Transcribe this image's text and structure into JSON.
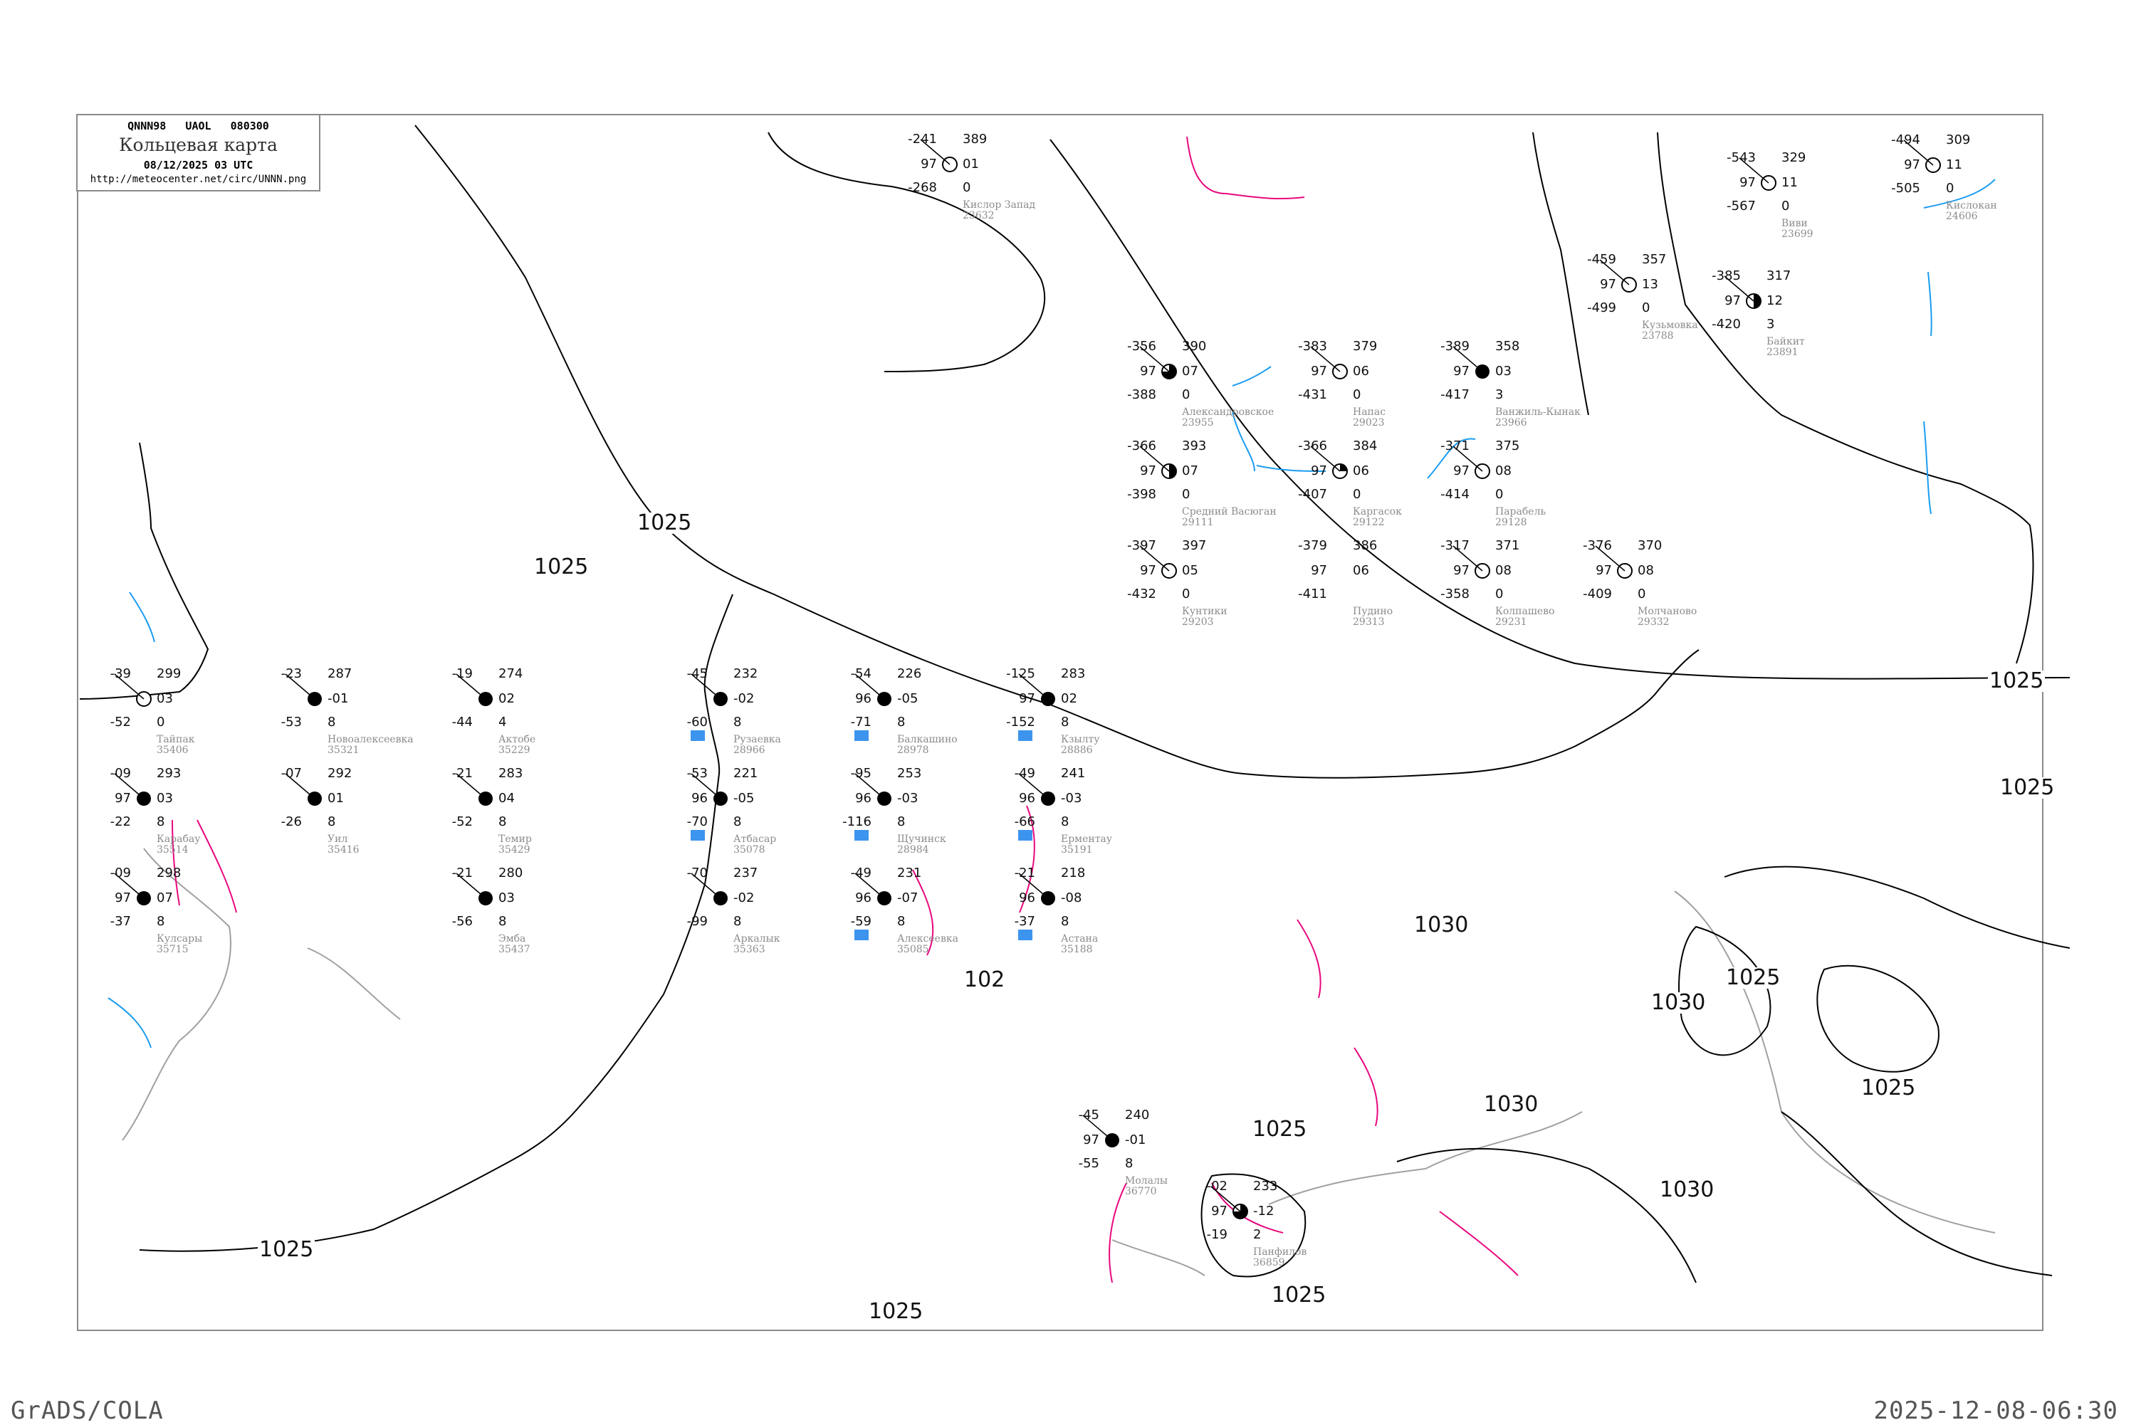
{
  "header": {
    "code_line": "QNNN98   UAOL   080300",
    "title": "Кольцевая карта",
    "datetime": "08/12/2025 03 UTC",
    "url": "http://meteocenter.net/circ/UNNN.png"
  },
  "footer": {
    "left": "GrADS/COLA",
    "right": "2025-12-08-06:30"
  },
  "colors": {
    "isobar": "#000000",
    "river": "#1a9cf0",
    "isotherm": "#e8087e",
    "coast": "#a0a0a0",
    "snow_marker": "#3d94ee",
    "yellow_marker": "#ffff33"
  },
  "isobar_labels": [
    "1025",
    "1025",
    "1025",
    "1025",
    "1025",
    "1025",
    "1030",
    "1030",
    "102",
    "1030",
    "1030",
    "1025",
    "1025",
    "1025",
    "1025"
  ],
  "stations": [
    {
      "name": "Кислор Запад",
      "id": "23632",
      "t": "-241",
      "p": "389",
      "pc": "97",
      "tend": "01",
      "td": "-268",
      "extra": "0",
      "cover": 0
    },
    {
      "name": "Кислокан",
      "id": "24606",
      "t": "-494",
      "p": "309",
      "pc": "97",
      "tend": "11",
      "td": "-505",
      "extra": "0",
      "cover": 0
    },
    {
      "name": "Александровское",
      "id": "23955",
      "t": "-356",
      "p": "390",
      "pc": "97",
      "tend": "07",
      "td": "-388",
      "extra": "0",
      "cover": 0.75
    },
    {
      "name": "Средний Васюган",
      "id": "29111",
      "t": "-366",
      "p": "393",
      "pc": "97",
      "tend": "07",
      "td": "-398",
      "extra": "0",
      "cover": 0.5
    },
    {
      "name": "Ванжиль-Кынак",
      "id": "23966",
      "t": "-389",
      "p": "358",
      "pc": "97",
      "tend": "03",
      "td": "-417",
      "extra": "3",
      "cover": 1
    },
    {
      "name": "Напас",
      "id": "29023",
      "t": "-383",
      "p": "379",
      "pc": "97",
      "tend": "06",
      "td": "-431",
      "extra": "0",
      "cover": 0
    },
    {
      "name": "Каргасок",
      "id": "29122",
      "t": "-366",
      "p": "384",
      "pc": "97",
      "tend": "06",
      "td": "-407",
      "extra": "0",
      "cover": 0.25
    },
    {
      "name": "Кунтики",
      "id": "29203",
      "t": "-397",
      "p": "397",
      "pc": "97",
      "tend": "05",
      "td": "-432",
      "extra": "0",
      "cover": 0
    },
    {
      "name": "Парабель",
      "id": "29128",
      "t": "-371",
      "p": "375",
      "pc": "97",
      "tend": "08",
      "td": "-414",
      "extra": "0",
      "cover": 0
    },
    {
      "name": "Колпашево",
      "id": "29231",
      "t": "-317",
      "p": "371",
      "pc": "97",
      "tend": "08",
      "td": "-358",
      "extra": "0",
      "cover": 0
    },
    {
      "name": "Молчаново",
      "id": "29332",
      "t": "-376",
      "p": "370",
      "pc": "97",
      "tend": "08",
      "td": "-409",
      "extra": "0",
      "cover": 0
    },
    {
      "name": "Пудино",
      "id": "29313",
      "t": "-379",
      "p": "386",
      "pc": "97",
      "tend": "06",
      "td": "-411",
      "extra": "",
      "cover": null
    },
    {
      "name": "Виви",
      "id": "23699",
      "t": "-543",
      "p": "329",
      "pc": "97",
      "tend": "11",
      "td": "-567",
      "extra": "0",
      "cover": 0
    },
    {
      "name": "Кузьмовка",
      "id": "23788",
      "t": "-459",
      "p": "357",
      "pc": "97",
      "tend": "13",
      "td": "-499",
      "extra": "0",
      "cover": 0
    },
    {
      "name": "Байкит",
      "id": "23891",
      "t": "-385",
      "p": "317",
      "pc": "97",
      "tend": "12",
      "td": "-420",
      "extra": "3",
      "cover": 0.5
    },
    {
      "name": "Рузаевка",
      "id": "28966",
      "t": "-45",
      "p": "232",
      "pc": "",
      "tend": "-02",
      "td": "-60",
      "extra": "8",
      "cover": 1,
      "snow": true
    },
    {
      "name": "Балкашино",
      "id": "28978",
      "t": "-54",
      "p": "226",
      "pc": "96",
      "tend": "-05",
      "td": "-71",
      "extra": "8",
      "cover": 1,
      "snow": true
    },
    {
      "name": "Щучинск",
      "id": "28984",
      "t": "-95",
      "p": "253",
      "pc": "96",
      "tend": "-03",
      "td": "-116",
      "extra": "8",
      "cover": 1,
      "snow": true
    },
    {
      "name": "Атбасар",
      "id": "35078",
      "t": "-53",
      "p": "221",
      "pc": "96",
      "tend": "-05",
      "td": "-70",
      "extra": "8",
      "cover": 1,
      "snow": true
    },
    {
      "name": "Алексеевка",
      "id": "35085",
      "t": "-49",
      "p": "231",
      "pc": "96",
      "tend": "-07",
      "td": "-59",
      "extra": "8",
      "cover": 1,
      "snow": true
    },
    {
      "name": "Астана",
      "id": "35188",
      "t": "-21",
      "p": "218",
      "pc": "96",
      "tend": "-08",
      "td": "-37",
      "extra": "8",
      "cover": 1,
      "snow": true
    },
    {
      "name": "Ерментау",
      "id": "35191",
      "t": "-49",
      "p": "241",
      "pc": "96",
      "tend": "-03",
      "td": "-66",
      "extra": "8",
      "cover": 1,
      "snow": true
    },
    {
      "name": "Аркалык",
      "id": "35363",
      "t": "-70",
      "p": "237",
      "pc": "",
      "tend": "-02",
      "td": "-99",
      "extra": "8",
      "cover": 1
    },
    {
      "name": "Кзылту",
      "id": "28886",
      "t": "-125",
      "p": "283",
      "pc": "97",
      "tend": "02",
      "td": "-152",
      "extra": "8",
      "cover": 1,
      "snow": true
    },
    {
      "name": "Тайпак",
      "id": "35406",
      "t": "-39",
      "p": "299",
      "pc": "",
      "tend": "03",
      "td": "-52",
      "extra": "0",
      "cover": 0
    },
    {
      "name": "Карабау",
      "id": "35514",
      "t": "-09",
      "p": "293",
      "pc": "97",
      "tend": "03",
      "td": "-22",
      "extra": "8",
      "cover": 1
    },
    {
      "name": "Уил",
      "id": "35416",
      "t": "-07",
      "p": "292",
      "pc": "",
      "tend": "01",
      "td": "-26",
      "extra": "8",
      "cover": 1
    },
    {
      "name": "Новоалексеевка",
      "id": "35321",
      "t": "-23",
      "p": "287",
      "pc": "",
      "tend": "-01",
      "td": "-53",
      "extra": "8",
      "cover": 1
    },
    {
      "name": "Актобе",
      "id": "35229",
      "t": "-19",
      "p": "274",
      "pc": "",
      "tend": "02",
      "td": "-44",
      "extra": "4",
      "cover": 1
    },
    {
      "name": "Темир",
      "id": "35429",
      "t": "-21",
      "p": "283",
      "pc": "",
      "tend": "04",
      "td": "-52",
      "extra": "8",
      "cover": 1
    },
    {
      "name": "Эмба",
      "id": "35437",
      "t": "-21",
      "p": "280",
      "pc": "",
      "tend": "03",
      "td": "-56",
      "extra": "8",
      "cover": 1
    },
    {
      "name": "Кулсары",
      "id": "35715",
      "t": "-09",
      "p": "298",
      "pc": "97",
      "tend": "07",
      "td": "-37",
      "extra": "8",
      "cover": 1
    },
    {
      "name": "Молалы",
      "id": "36770",
      "t": "-45",
      "p": "240",
      "pc": "97",
      "tend": "-01",
      "td": "-55",
      "extra": "8",
      "cover": 1
    },
    {
      "name": "Панфилов",
      "id": "36859",
      "t": "-02",
      "p": "233",
      "pc": "97",
      "tend": "-12",
      "td": "-19",
      "extra": "2",
      "cover": 0.75
    }
  ]
}
